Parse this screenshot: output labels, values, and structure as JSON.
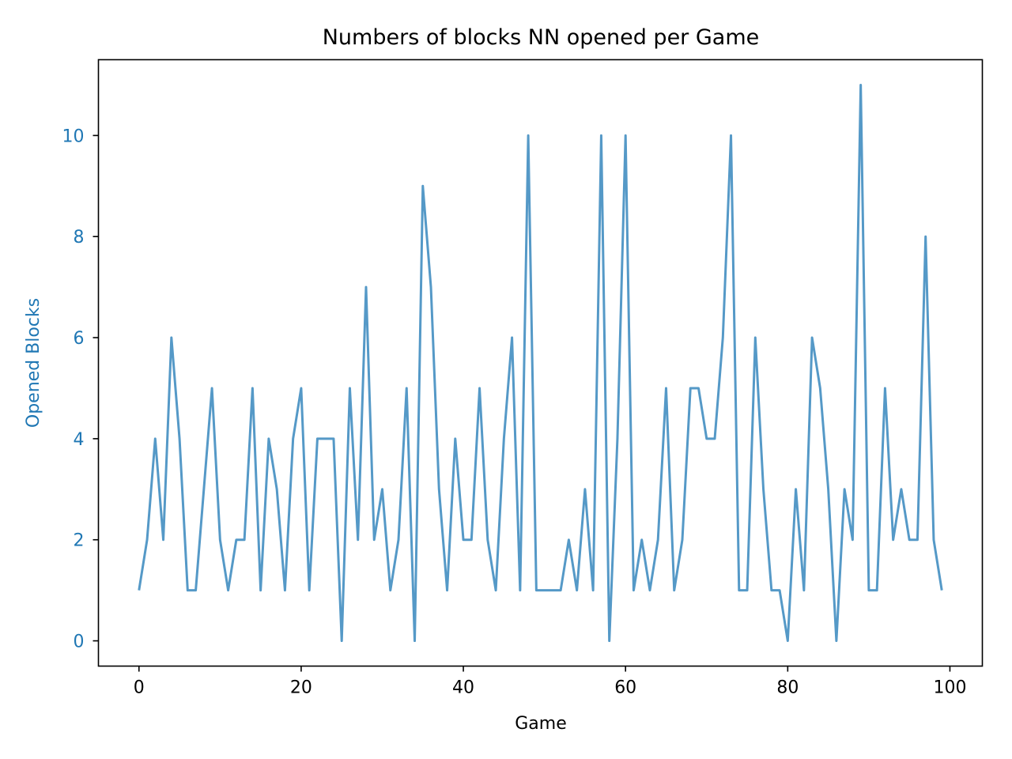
{
  "chart_data": {
    "type": "line",
    "title": "Numbers of blocks NN opened per Game",
    "xlabel": "Game",
    "ylabel": "Opened Blocks",
    "xlim": [
      -5,
      104
    ],
    "ylim": [
      -0.5,
      11.5
    ],
    "xticks": [
      0,
      20,
      40,
      60,
      80,
      100
    ],
    "yticks": [
      0,
      2,
      4,
      6,
      8,
      10
    ],
    "grid": false,
    "line_color": "#5599c7",
    "axis_label_color": "#1f77b4",
    "series": [
      {
        "values": [
          1,
          2,
          4,
          2,
          6,
          4,
          1,
          1,
          3,
          5,
          2,
          1,
          2,
          2,
          5,
          1,
          4,
          3,
          1,
          4,
          5,
          1,
          4,
          4,
          4,
          0,
          5,
          2,
          7,
          2,
          3,
          1,
          2,
          5,
          0,
          9,
          7,
          3,
          1,
          4,
          2,
          2,
          5,
          2,
          1,
          4,
          6,
          1,
          10,
          1,
          1,
          1,
          1,
          2,
          1,
          3,
          1,
          10,
          0,
          4,
          10,
          1,
          2,
          1,
          2,
          5,
          1,
          2,
          5,
          5,
          4,
          4,
          6,
          10,
          1,
          1,
          6,
          3,
          1,
          1,
          0,
          3,
          1,
          6,
          5,
          3,
          0,
          3,
          2,
          11,
          1,
          1,
          5,
          2,
          3,
          2,
          2,
          8,
          2,
          1
        ]
      }
    ]
  }
}
